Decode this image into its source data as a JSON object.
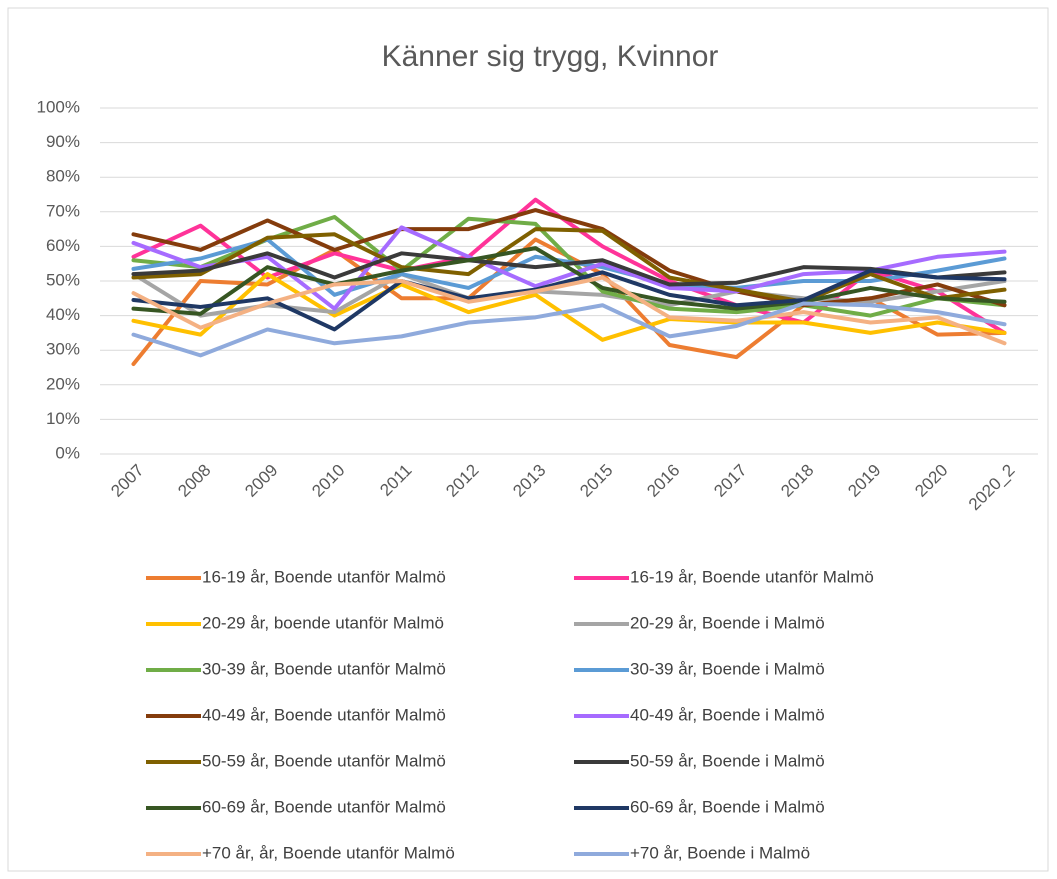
{
  "chart_data": {
    "type": "line",
    "title": "Känner sig trygg, Kvinnor",
    "categories": [
      "2007",
      "2008",
      "2009",
      "2010",
      "2011",
      "2012",
      "2013",
      "2015",
      "2016",
      "2017",
      "2018",
      "2019",
      "2020",
      "2020_2"
    ],
    "ylim": [
      0,
      100
    ],
    "yticks": [
      {
        "value": 0,
        "label": "0%"
      },
      {
        "value": 10,
        "label": "10%"
      },
      {
        "value": 20,
        "label": "20%"
      },
      {
        "value": 30,
        "label": "30%"
      },
      {
        "value": 40,
        "label": "40%"
      },
      {
        "value": 50,
        "label": "50%"
      },
      {
        "value": 60,
        "label": "60%"
      },
      {
        "value": 70,
        "label": "70%"
      },
      {
        "value": 80,
        "label": "80%"
      },
      {
        "value": 90,
        "label": "90%"
      },
      {
        "value": 100,
        "label": "100%"
      }
    ],
    "grid": true,
    "legend": "bottom",
    "series": [
      {
        "name": "16-19 år, Boende utanför Malmö",
        "color": "#ed7d31",
        "values": [
          26,
          50,
          49,
          59,
          45,
          45,
          62,
          52,
          31.5,
          28,
          43,
          45,
          34.5,
          35
        ]
      },
      {
        "name": "16-19 år, Boende utanför Malmö",
        "color": "#ff3399",
        "values": [
          57,
          66,
          51,
          58,
          53,
          57,
          73.5,
          60,
          50,
          43,
          38,
          53,
          47,
          35
        ]
      },
      {
        "name": "20-29 år, boende utanför Malmö",
        "color": "#ffc000",
        "values": [
          38.5,
          34.5,
          52,
          40,
          49,
          41,
          46,
          33,
          39,
          38,
          38,
          35,
          38,
          35
        ]
      },
      {
        "name": "20-29 år, Boende i Malmö",
        "color": "#a5a5a5",
        "values": [
          52,
          40,
          43,
          41,
          52,
          45,
          47,
          46,
          43,
          47,
          45,
          44,
          47,
          50
        ]
      },
      {
        "name": "30-39 år, Boende utanför Malmö",
        "color": "#70ad47",
        "values": [
          56,
          54,
          62,
          68.5,
          53,
          68,
          66.5,
          47,
          42,
          41,
          43,
          40,
          45,
          43
        ]
      },
      {
        "name": "30-39 år, Boende i Malmö",
        "color": "#5b9bd5",
        "values": [
          53.5,
          56.5,
          62,
          46,
          52,
          48,
          57,
          54,
          49,
          48,
          50,
          50,
          53,
          56.5
        ]
      },
      {
        "name": "40-49 år, Boende utanför Malmö",
        "color": "#843c0c",
        "values": [
          63.5,
          59,
          67.5,
          59,
          65,
          65,
          70.5,
          65,
          53,
          47,
          43,
          45,
          49,
          43
        ]
      },
      {
        "name": "40-49 år, Boende i Malmö",
        "color": "#a66bff",
        "values": [
          61,
          54,
          57,
          42,
          65.5,
          57,
          48.5,
          55,
          48,
          47,
          52,
          53,
          57,
          58.5
        ]
      },
      {
        "name": "50-59 år, Boende utanför Malmö",
        "color": "#7f6000",
        "values": [
          51,
          52,
          62.5,
          63.5,
          54,
          52,
          65,
          64.5,
          51,
          47.5,
          44,
          52,
          45,
          47.5
        ]
      },
      {
        "name": "50-59 år, Boende i Malmö",
        "color": "#3a3a3a",
        "values": [
          52,
          53,
          58,
          51,
          58,
          56,
          54,
          56,
          49,
          49.5,
          54,
          53.5,
          51,
          52.5
        ]
      },
      {
        "name": "60-69 år, Boende utanför Malmö",
        "color": "#375623",
        "values": [
          42,
          40.5,
          54,
          49,
          53,
          56,
          59.5,
          48,
          44,
          42,
          44,
          48,
          45,
          44
        ]
      },
      {
        "name": "60-69 år, Boende i Malmö",
        "color": "#1f3864",
        "values": [
          44.5,
          42.5,
          45,
          36,
          50,
          45,
          47.5,
          52.5,
          46,
          43,
          44.5,
          53,
          51,
          50.5
        ]
      },
      {
        "name": "+70 år, år, Boende utanför Malmö",
        "color": "#f4b183",
        "values": [
          46.5,
          36.5,
          43.5,
          49,
          50,
          44,
          47,
          51,
          39.5,
          38.5,
          41,
          38,
          39.5,
          32
        ]
      },
      {
        "name": "+70 år, Boende i Malmö",
        "color": "#8faadc",
        "values": [
          34.5,
          28.5,
          36,
          32,
          34,
          38,
          39.5,
          43,
          34,
          37,
          43.5,
          43,
          41,
          37.5
        ]
      }
    ]
  }
}
